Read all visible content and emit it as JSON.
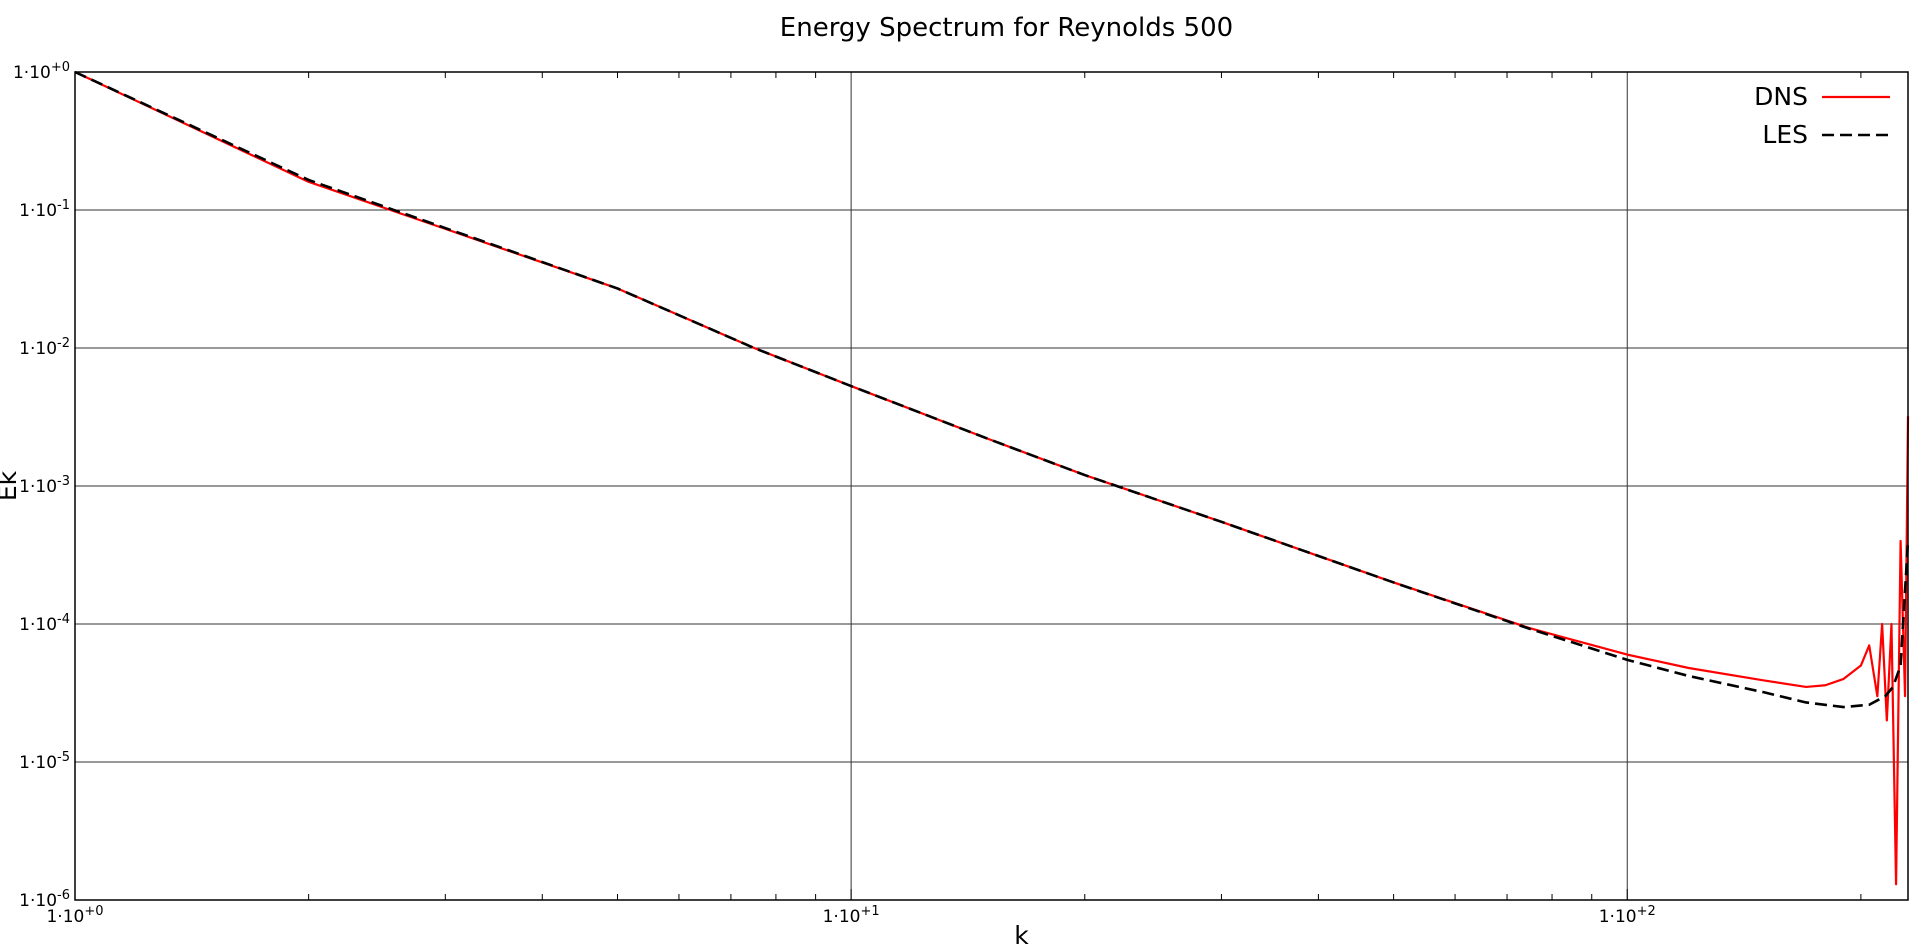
{
  "chart_data": {
    "type": "line",
    "title": "Energy Spectrum for Reynolds 500",
    "xlabel": "k",
    "ylabel": "Ek",
    "xscale": "log",
    "yscale": "log",
    "xlim": [
      1,
      230
    ],
    "ylim": [
      1e-06,
      1
    ],
    "grid": true,
    "legend_position": "top-right",
    "x_ticks": [
      {
        "value": 1,
        "label": "1·10+0"
      },
      {
        "value": 10,
        "label": "1·10+1"
      },
      {
        "value": 100,
        "label": "1·10+2"
      }
    ],
    "y_ticks": [
      {
        "value": 1,
        "label": "1·10+0"
      },
      {
        "value": 0.1,
        "label": "1·10-1"
      },
      {
        "value": 0.01,
        "label": "1·10-2"
      },
      {
        "value": 0.001,
        "label": "1·10-3"
      },
      {
        "value": 0.0001,
        "label": "1·10-4"
      },
      {
        "value": 1e-05,
        "label": "1·10-5"
      },
      {
        "value": 1e-06,
        "label": "1·10-6"
      }
    ],
    "series": [
      {
        "name": "DNS",
        "color": "#ff0000",
        "dash": "solid",
        "x": [
          1,
          2,
          3,
          5,
          7.5,
          10,
          15,
          20,
          30,
          50,
          75,
          100,
          120,
          150,
          170,
          180,
          190,
          200,
          205,
          210,
          213,
          216,
          219,
          222,
          225,
          228,
          230
        ],
        "y": [
          1,
          0.16,
          0.073,
          0.027,
          0.01,
          0.0053,
          0.0022,
          0.0012,
          0.00055,
          0.0002,
          9.3e-05,
          6e-05,
          4.8e-05,
          3.9e-05,
          3.5e-05,
          3.6e-05,
          4e-05,
          5e-05,
          7e-05,
          3e-05,
          0.0001,
          2e-05,
          0.0001,
          1.3e-06,
          0.0004,
          3e-05,
          0.0032
        ]
      },
      {
        "name": "LES",
        "color": "#000000",
        "dash": "dashed",
        "x": [
          1,
          2,
          3,
          5,
          7.5,
          10,
          15,
          20,
          30,
          50,
          75,
          100,
          120,
          150,
          170,
          190,
          205,
          215,
          220,
          225,
          230
        ],
        "y": [
          1,
          0.165,
          0.074,
          0.027,
          0.01,
          0.0053,
          0.0022,
          0.0012,
          0.00055,
          0.0002,
          9.2e-05,
          5.5e-05,
          4.2e-05,
          3.2e-05,
          2.7e-05,
          2.5e-05,
          2.6e-05,
          3e-05,
          3.5e-05,
          5e-05,
          0.0004
        ]
      }
    ]
  }
}
